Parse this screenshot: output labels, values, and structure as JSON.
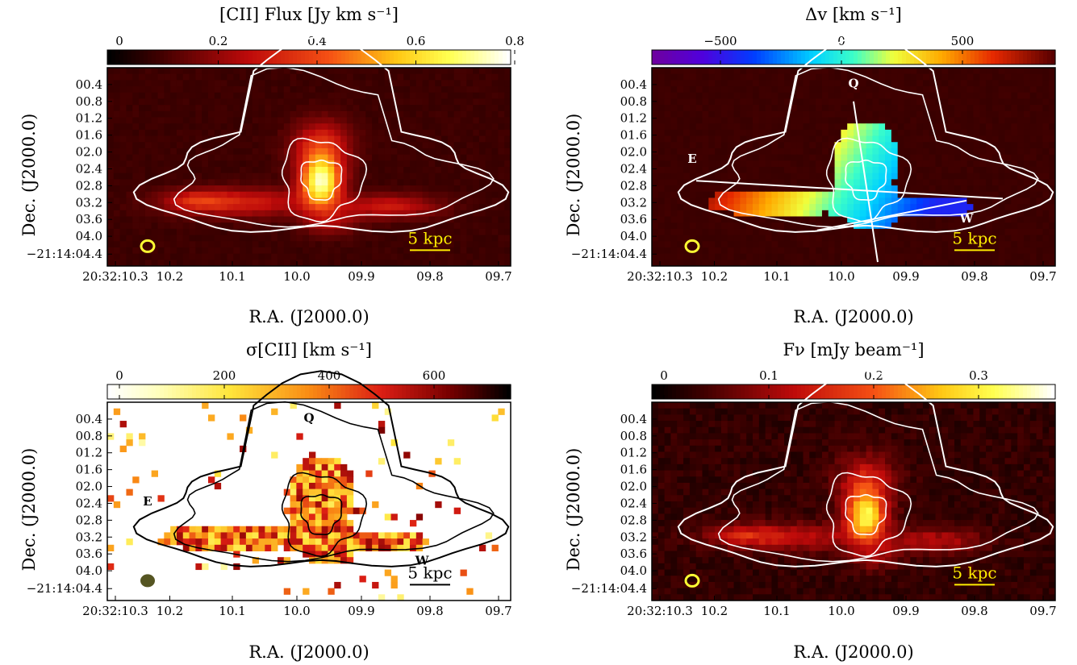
{
  "figure": {
    "panels": [
      {
        "id": "flux",
        "colorbar_title": "[CII] Flux [Jy km s⁻¹]",
        "colorbar_ticks": [
          "0",
          "0.2",
          "0.4",
          "0.6",
          "0.8"
        ],
        "colormap": "heat",
        "background": "#4a1510",
        "contour_color": "#ffffff",
        "beam_color": "#ffff33",
        "scalebar_label": "5 kpc",
        "scalebar_color": "#ffee00",
        "has_overlay_labels": false
      },
      {
        "id": "velocity",
        "colorbar_title": "Δv [km s⁻¹]",
        "colorbar_ticks": [
          "−500",
          "0",
          "500"
        ],
        "colormap": "rainbow",
        "background": "#4a1510",
        "contour_color": "#ffffff",
        "beam_color": "#ffff33",
        "scalebar_label": "5 kpc",
        "scalebar_color": "#ffee00",
        "has_overlay_labels": true,
        "overlay_labels": {
          "q": "Q",
          "e": "E",
          "w": "W"
        }
      },
      {
        "id": "dispersion",
        "colorbar_title": "σ[CII] [km s⁻¹]",
        "colorbar_ticks": [
          "0",
          "200",
          "400",
          "600"
        ],
        "colormap": "heat_reversed",
        "background": "#ffffff",
        "contour_color": "#000000",
        "beam_color": "#555522",
        "scalebar_label": "5 kpc",
        "scalebar_color": "#000000",
        "has_overlay_labels": true,
        "overlay_labels": {
          "q": "Q",
          "e": "E",
          "w": "W"
        }
      },
      {
        "id": "continuum",
        "colorbar_title": "Fν [mJy beam⁻¹]",
        "colorbar_ticks": [
          "0",
          "0.1",
          "0.2",
          "0.3"
        ],
        "colormap": "heat",
        "background": "#4a1510",
        "contour_color": "#ffffff",
        "beam_color": "#ffff33",
        "scalebar_label": "5 kpc",
        "scalebar_color": "#ffee00",
        "has_overlay_labels": false
      }
    ],
    "ra_label": "R.A. (J2000.0)",
    "dec_label": "Dec. (J2000.0)",
    "ra_ticks": [
      "20:32:10.3",
      "10.2",
      "10.1",
      "10.0",
      "09.9",
      "09.8",
      "09.7"
    ],
    "dec_ticks": [
      "00.4",
      "00.8",
      "01.2",
      "01.6",
      "02.0",
      "02.4",
      "02.8",
      "03.2",
      "03.6",
      "04.0",
      "−21:14:04.4"
    ]
  },
  "chart_data": [
    {
      "type": "heatmap",
      "title": "[CII] Flux [Jy km s⁻¹]",
      "xlabel": "R.A. (J2000.0)",
      "ylabel": "Dec. (J2000.0)",
      "colorbar_range": [
        0,
        0.85
      ],
      "x_ticks": [
        "20:32:10.3",
        "10.2",
        "10.1",
        "10.0",
        "09.9",
        "09.8",
        "09.7"
      ],
      "y_ticks": [
        "00.4",
        "00.8",
        "01.2",
        "01.6",
        "02.0",
        "02.4",
        "02.8",
        "03.2",
        "03.6",
        "04.0",
        "−21:14:04.4"
      ],
      "peak_value": 0.85
    },
    {
      "type": "heatmap",
      "title": "Δv [km s⁻¹]",
      "xlabel": "R.A. (J2000.0)",
      "ylabel": "Dec. (J2000.0)",
      "colorbar_range": [
        -700,
        700
      ],
      "x_ticks": [
        "20:32:10.3",
        "10.2",
        "10.1",
        "10.0",
        "09.9",
        "09.8",
        "09.7"
      ],
      "y_ticks": [
        "00.4",
        "00.8",
        "01.2",
        "01.6",
        "02.0",
        "02.4",
        "02.8",
        "03.2",
        "03.6",
        "04.0",
        "−21:14:04.4"
      ],
      "annotations": [
        "Q",
        "E",
        "W"
      ]
    },
    {
      "type": "heatmap",
      "title": "σ[CII] [km s⁻¹]",
      "xlabel": "R.A. (J2000.0)",
      "ylabel": "Dec. (J2000.0)",
      "colorbar_range": [
        0,
        700
      ],
      "x_ticks": [
        "20:32:10.3",
        "10.2",
        "10.1",
        "10.0",
        "09.9",
        "09.8",
        "09.7"
      ],
      "y_ticks": [
        "00.4",
        "00.8",
        "01.2",
        "01.6",
        "02.0",
        "02.4",
        "02.8",
        "03.2",
        "03.6",
        "04.0",
        "−21:14:04.4"
      ],
      "annotations": [
        "Q",
        "E",
        "W"
      ]
    },
    {
      "type": "heatmap",
      "title": "Fν [mJy beam⁻¹]",
      "xlabel": "R.A. (J2000.0)",
      "ylabel": "Dec. (J2000.0)",
      "colorbar_range": [
        -0.03,
        0.34
      ],
      "x_ticks": [
        "20:32:10.3",
        "10.2",
        "10.1",
        "10.0",
        "09.9",
        "09.8",
        "09.7"
      ],
      "y_ticks": [
        "00.4",
        "00.8",
        "01.2",
        "01.6",
        "02.0",
        "02.4",
        "02.8",
        "03.2",
        "03.6",
        "04.0",
        "−21:14:04.4"
      ],
      "peak_value": 0.34
    }
  ]
}
